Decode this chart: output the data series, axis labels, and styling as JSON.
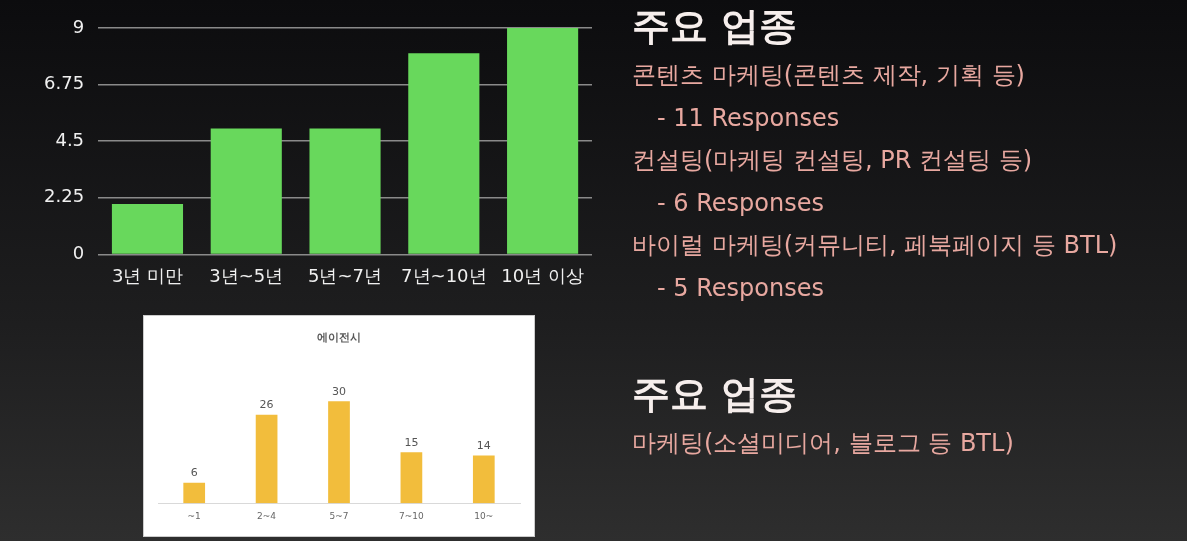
{
  "chart_data": [
    {
      "type": "bar",
      "categories": [
        "3년 미만",
        "3년~5년",
        "5년~7년",
        "7년~10년",
        "10년 이상"
      ],
      "values": [
        2,
        5,
        5,
        8,
        9
      ],
      "color": "#68d85c",
      "ylim": [
        0,
        9
      ],
      "yticks": [
        0,
        2.25,
        4.5,
        6.75,
        9
      ],
      "grid": "y"
    },
    {
      "type": "other",
      "title": "주요 업종",
      "annotations": [
        "콘텐츠 마케팅(콘텐츠 제작, 기획 등)",
        "- 11 Responses",
        "컨설팅(마케팅 컨설팅, PR 컨설팅 등)",
        "- 6 Responses",
        "바이럴 마케팅(커뮤니티, 페북페이지 등 BTL)",
        "- 5 Responses"
      ]
    },
    {
      "type": "bar",
      "title": "에이전시",
      "categories": [
        "~1",
        "2~4",
        "5~7",
        "7~10",
        "10~"
      ],
      "values": [
        6,
        26,
        30,
        15,
        14
      ],
      "color": "#f2bd3c",
      "data_labels": true
    },
    {
      "type": "other",
      "title": "주요 업종",
      "annotations": [
        "마케팅(소셜미디어, 블로그 등 BTL)"
      ]
    }
  ]
}
